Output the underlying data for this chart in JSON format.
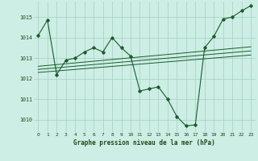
{
  "title": "Graphe pression niveau de la mer (hPa)",
  "background_color": "#cdeee5",
  "grid_color": "#aad4c8",
  "line_color": "#1a5c2a",
  "xlim": [
    -0.5,
    23.5
  ],
  "ylim": [
    1009.4,
    1015.75
  ],
  "yticks": [
    1010,
    1011,
    1012,
    1013,
    1014,
    1015
  ],
  "xticks": [
    0,
    1,
    2,
    3,
    4,
    5,
    6,
    7,
    8,
    9,
    10,
    11,
    12,
    13,
    14,
    15,
    16,
    17,
    18,
    19,
    20,
    21,
    22,
    23
  ],
  "series1_x": [
    0,
    1,
    2,
    3,
    4,
    5,
    6,
    7,
    8,
    9,
    10,
    11,
    12,
    13,
    14,
    15,
    16,
    17,
    18,
    19,
    20,
    21,
    22,
    23
  ],
  "series1_y": [
    1014.1,
    1014.85,
    1012.2,
    1012.9,
    1013.0,
    1013.3,
    1013.5,
    1013.3,
    1014.0,
    1013.5,
    1013.1,
    1011.4,
    1011.5,
    1011.6,
    1011.0,
    1010.15,
    1009.7,
    1009.75,
    1013.5,
    1014.05,
    1014.9,
    1015.0,
    1015.3,
    1015.55
  ],
  "trend1_x": [
    0,
    23
  ],
  "trend1_y": [
    1012.3,
    1013.15
  ],
  "trend2_x": [
    0,
    23
  ],
  "trend2_y": [
    1012.45,
    1013.35
  ],
  "trend3_x": [
    0,
    23
  ],
  "trend3_y": [
    1012.6,
    1013.55
  ]
}
